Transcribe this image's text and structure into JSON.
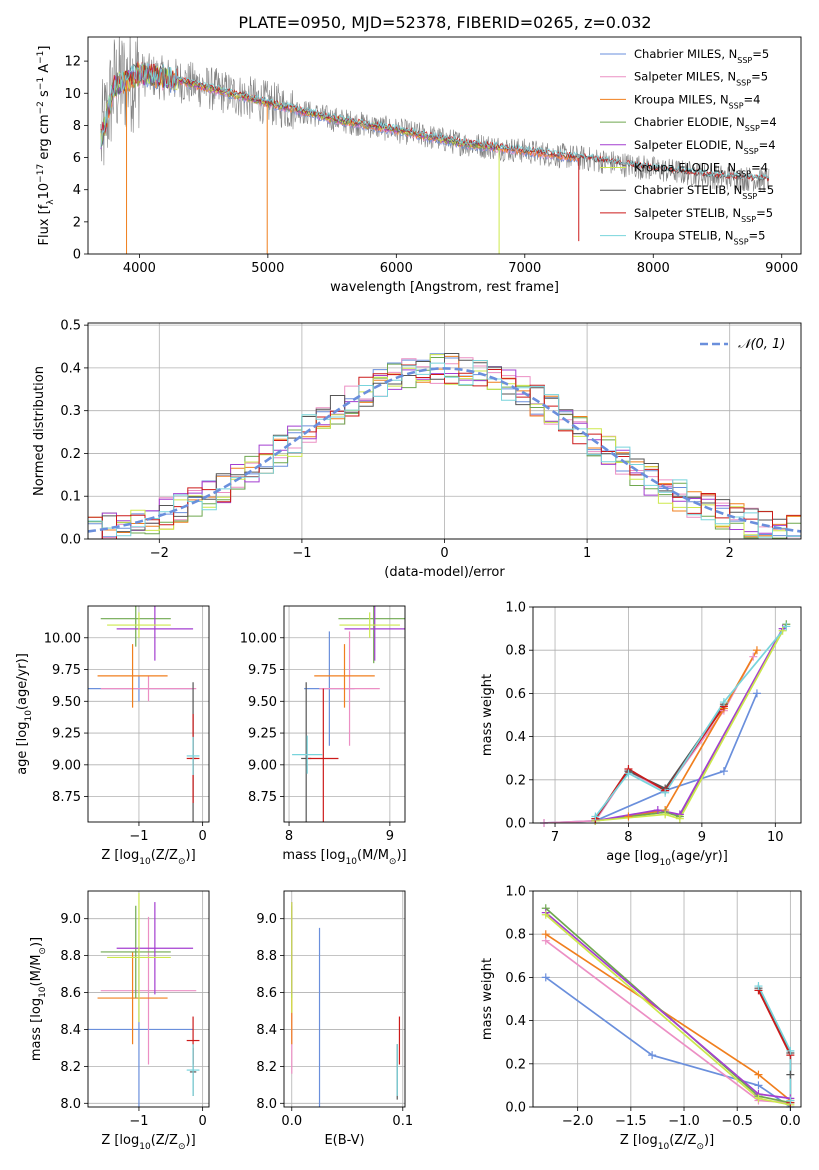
{
  "figure": {
    "title": "PLATE=0950, MJD=52378, FIBERID=0265, z=0.032"
  },
  "colors": {
    "Chabrier MILES": "#6a8fdc",
    "Salpeter MILES": "#ec8fc4",
    "Kroupa MILES": "#f07f1e",
    "Chabrier ELODIE": "#6fa84f",
    "Salpeter ELODIE": "#a43fd0",
    "Kroupa ELODIE": "#cde84c",
    "Chabrier STELIB": "#555555",
    "Salpeter STELIB": "#cc1a1a",
    "Kroupa STELIB": "#78d4dc"
  },
  "chart_data": [
    {
      "type": "line",
      "title": "PLATE=0950, MJD=52378, FIBERID=0265, z=0.032",
      "xlabel": "wavelength [Angstrom, rest frame]",
      "ylabel_parts": [
        "Flux [f",
        "λ",
        "10",
        "−17",
        " erg cm",
        "−2",
        " s",
        "−1",
        " A",
        "−1",
        "]"
      ],
      "xlim": [
        3600,
        9150
      ],
      "ylim": [
        0,
        13.5
      ],
      "xticks": [
        4000,
        5000,
        6000,
        7000,
        8000,
        9000
      ],
      "yticks": [
        0,
        2,
        4,
        6,
        8,
        10,
        12
      ],
      "grid": false,
      "legend_position": "upper-right",
      "legend": [
        {
          "model": "Chabrier MILES",
          "label": "Chabrier MILES, N",
          "sub": "SSP",
          "n": "=5"
        },
        {
          "model": "Salpeter MILES",
          "label": "Salpeter MILES, N",
          "sub": "SSP",
          "n": "=5"
        },
        {
          "model": "Kroupa MILES",
          "label": "Kroupa MILES, N",
          "sub": "SSP",
          "n": "=4"
        },
        {
          "model": "Chabrier ELODIE",
          "label": "Chabrier ELODIE, N",
          "sub": "SSP",
          "n": "=4"
        },
        {
          "model": "Salpeter ELODIE",
          "label": "Salpeter ELODIE, N",
          "sub": "SSP",
          "n": "=4"
        },
        {
          "model": "Kroupa ELODIE",
          "label": "Kroupa ELODIE, N",
          "sub": "SSP",
          "n": "=4"
        },
        {
          "model": "Chabrier STELIB",
          "label": "Chabrier STELIB, N",
          "sub": "SSP",
          "n": "=5"
        },
        {
          "model": "Salpeter STELIB",
          "label": "Salpeter STELIB, N",
          "sub": "SSP",
          "n": "=5"
        },
        {
          "model": "Kroupa STELIB",
          "label": "Kroupa STELIB, N",
          "sub": "SSP",
          "n": "=5"
        }
      ],
      "continuum": [
        [
          3700,
          7.0
        ],
        [
          3800,
          10.4
        ],
        [
          4000,
          11.2
        ],
        [
          4300,
          10.8
        ],
        [
          4600,
          10.2
        ],
        [
          5000,
          9.4
        ],
        [
          5500,
          8.4
        ],
        [
          6000,
          7.7
        ],
        [
          6500,
          6.9
        ],
        [
          7000,
          6.4
        ],
        [
          7500,
          5.9
        ],
        [
          8000,
          5.3
        ],
        [
          8500,
          4.8
        ],
        [
          8900,
          4.6
        ]
      ],
      "data_range": [
        3700,
        8900
      ],
      "model_ranges": {
        "MILES": [
          3700,
          7420
        ],
        "ELODIE": [
          3700,
          6800
        ],
        "STELIB": [
          3700,
          8900
        ]
      },
      "model_dips": [
        {
          "model": "Kroupa MILES",
          "x": 3900,
          "y": 0
        },
        {
          "model": "Kroupa MILES",
          "x": 4995,
          "y": 0
        },
        {
          "model": "Kroupa ELODIE",
          "x": 6800,
          "y": 0
        },
        {
          "model": "Salpeter STELIB",
          "x": 7420,
          "y": 0.8
        }
      ]
    },
    {
      "type": "line",
      "xlabel": "(data-model)/error",
      "ylabel": "Normed distribution",
      "xlim": [
        -2.5,
        2.5
      ],
      "ylim": [
        0,
        0.505
      ],
      "xticks": [
        -2,
        -1,
        0,
        1,
        2
      ],
      "yticks": [
        0.0,
        0.1,
        0.2,
        0.3,
        0.4,
        0.5
      ],
      "grid": true,
      "legend_position": "upper-right",
      "legend": [
        {
          "label": "𝒩(0, 1)",
          "style": "dashed",
          "color": "#6a8fdc"
        }
      ],
      "bin_width": 0.1,
      "series_note": "step histograms of residuals, one per model",
      "gaussian": {
        "mean": 0,
        "sigma": 1
      }
    },
    {
      "type": "scatter",
      "xlabel_parts": [
        "Z [log",
        "10",
        "(Z/Z",
        "⊙",
        ")]"
      ],
      "ylabel_parts": [
        "age  [log",
        "10",
        "(age/yr)]"
      ],
      "xlim": [
        -1.8,
        0.1
      ],
      "ylim": [
        8.55,
        10.25
      ],
      "xticks": [
        -1,
        0
      ],
      "yticks": [
        8.75,
        9.0,
        9.25,
        9.5,
        9.75,
        10.0
      ],
      "grid": true,
      "points": [
        {
          "model": "Chabrier MILES",
          "x": -1.0,
          "xerr": 0.85,
          "y": 9.6,
          "yerr": 0.1
        },
        {
          "model": "Salpeter MILES",
          "x": -0.85,
          "xerr": 0.75,
          "y": 9.6,
          "yerr": 0.1
        },
        {
          "model": "Kroupa MILES",
          "x": -1.1,
          "xerr": 0.55,
          "y": 9.7,
          "yerr": 0.25
        },
        {
          "model": "Chabrier ELODIE",
          "x": -1.05,
          "xerr": 0.55,
          "y": 10.15,
          "yerr": 0.22
        },
        {
          "model": "Salpeter ELODIE",
          "x": -0.75,
          "xerr": 0.6,
          "y": 10.07,
          "yerr": 0.25
        },
        {
          "model": "Kroupa ELODIE",
          "x": -1.0,
          "xerr": 0.5,
          "y": 10.1,
          "yerr": 0.1
        },
        {
          "model": "Chabrier STELIB",
          "x": -0.15,
          "xerr": 0.05,
          "y": 9.05,
          "yerr": 0.6
        },
        {
          "model": "Salpeter STELIB",
          "x": -0.15,
          "xerr": 0.1,
          "y": 9.05,
          "yerr": 0.35
        },
        {
          "model": "Kroupa STELIB",
          "x": -0.15,
          "xerr": 0.1,
          "y": 9.07,
          "yerr": 0.15
        }
      ]
    },
    {
      "type": "scatter",
      "xlabel_parts": [
        "mass [log",
        "10",
        "(M/M",
        "⊙",
        ")]"
      ],
      "xlim": [
        7.95,
        9.15
      ],
      "ylim": [
        8.55,
        10.25
      ],
      "xticks": [
        8,
        9
      ],
      "yticks": [
        8.75,
        9.0,
        9.25,
        9.5,
        9.75,
        10.0
      ],
      "grid": true,
      "points": [
        {
          "model": "Chabrier MILES",
          "x": 8.4,
          "xerr": 0.25,
          "y": 9.6,
          "yerr": 0.45
        },
        {
          "model": "Salpeter MILES",
          "x": 8.6,
          "xerr": 0.3,
          "y": 9.6,
          "yerr": 0.45
        },
        {
          "model": "Kroupa MILES",
          "x": 8.55,
          "xerr": 0.3,
          "y": 9.7,
          "yerr": 0.25
        },
        {
          "model": "Chabrier ELODIE",
          "x": 8.84,
          "xerr": 0.35,
          "y": 10.15,
          "yerr": 0.35
        },
        {
          "model": "Salpeter ELODIE",
          "x": 8.85,
          "xerr": 0.3,
          "y": 10.07,
          "yerr": 0.25
        },
        {
          "model": "Kroupa ELODIE",
          "x": 8.8,
          "xerr": 0.3,
          "y": 10.1,
          "yerr": 0.1
        },
        {
          "model": "Chabrier STELIB",
          "x": 8.17,
          "xerr": 0.05,
          "y": 9.05,
          "yerr": 0.6
        },
        {
          "model": "Salpeter STELIB",
          "x": 8.34,
          "xerr": 0.15,
          "y": 9.05,
          "yerr": 0.55
        },
        {
          "model": "Kroupa STELIB",
          "x": 8.18,
          "xerr": 0.15,
          "y": 9.08,
          "yerr": 0.15
        }
      ]
    },
    {
      "type": "line",
      "xlabel_parts": [
        "age  [log",
        "10",
        "(age/yr)]"
      ],
      "ylabel": "mass weight",
      "xlim": [
        6.7,
        10.35
      ],
      "ylim": [
        0,
        1.0
      ],
      "xticks": [
        7,
        8,
        9,
        10
      ],
      "yticks": [
        0.0,
        0.2,
        0.4,
        0.6,
        0.8,
        1.0
      ],
      "grid": true,
      "series": [
        {
          "model": "Chabrier MILES",
          "x": [
            6.85,
            7.55,
            8.5,
            9.3,
            9.75
          ],
          "y": [
            0.0,
            0.01,
            0.15,
            0.24,
            0.6
          ]
        },
        {
          "model": "Salpeter MILES",
          "x": [
            6.85,
            7.55,
            8.0,
            8.5,
            9.3,
            9.7
          ],
          "y": [
            0.0,
            0.01,
            0.24,
            0.15,
            0.52,
            0.77
          ]
        },
        {
          "model": "Kroupa MILES",
          "x": [
            7.55,
            8.0,
            8.5,
            9.3,
            9.75
          ],
          "y": [
            0.01,
            0.03,
            0.06,
            0.53,
            0.8
          ]
        },
        {
          "model": "Chabrier ELODIE",
          "x": [
            7.55,
            8.5,
            8.7,
            10.15
          ],
          "y": [
            0.01,
            0.05,
            0.03,
            0.92
          ]
        },
        {
          "model": "Salpeter ELODIE",
          "x": [
            7.55,
            8.4,
            8.7,
            10.1
          ],
          "y": [
            0.01,
            0.06,
            0.04,
            0.9
          ]
        },
        {
          "model": "Kroupa ELODIE",
          "x": [
            7.55,
            8.5,
            8.7,
            10.1
          ],
          "y": [
            0.01,
            0.04,
            0.02,
            0.89
          ]
        },
        {
          "model": "Chabrier STELIB",
          "x": [
            7.55,
            8.0,
            8.5,
            9.3
          ],
          "y": [
            0.02,
            0.24,
            0.16,
            0.55
          ]
        },
        {
          "model": "Salpeter STELIB",
          "x": [
            7.55,
            8.0,
            8.5,
            9.3
          ],
          "y": [
            0.02,
            0.25,
            0.15,
            0.54
          ]
        },
        {
          "model": "Kroupa STELIB",
          "x": [
            7.55,
            8.0,
            8.5,
            9.3,
            10.15
          ],
          "y": [
            0.03,
            0.23,
            0.14,
            0.56,
            0.91
          ]
        }
      ]
    },
    {
      "type": "scatter",
      "xlabel_parts": [
        "Z [log",
        "10",
        "(Z/Z",
        "⊙",
        ")]"
      ],
      "ylabel_parts": [
        "mass [log",
        "10",
        "(M/M",
        "⊙",
        ")]"
      ],
      "xlim": [
        -1.8,
        0.1
      ],
      "ylim": [
        7.98,
        9.15
      ],
      "xticks": [
        -1,
        0
      ],
      "yticks": [
        8.0,
        8.2,
        8.4,
        8.6,
        8.8,
        9.0
      ],
      "grid": true,
      "points": [
        {
          "model": "Chabrier MILES",
          "x": -1.0,
          "xerr": 0.85,
          "y": 8.4,
          "yerr": 0.45
        },
        {
          "model": "Salpeter MILES",
          "x": -0.85,
          "xerr": 0.75,
          "y": 8.61,
          "yerr": 0.4
        },
        {
          "model": "Kroupa MILES",
          "x": -1.1,
          "xerr": 0.55,
          "y": 8.57,
          "yerr": 0.25
        },
        {
          "model": "Chabrier ELODIE",
          "x": -1.05,
          "xerr": 0.55,
          "y": 8.82,
          "yerr": 0.25
        },
        {
          "model": "Salpeter ELODIE",
          "x": -0.75,
          "xerr": 0.6,
          "y": 8.84,
          "yerr": 0.25
        },
        {
          "model": "Kroupa ELODIE",
          "x": -1.0,
          "xerr": 0.5,
          "y": 8.79,
          "yerr": 0.35
        },
        {
          "model": "Chabrier STELIB",
          "x": -0.15,
          "xerr": 0.05,
          "y": 8.17,
          "yerr": 0.13
        },
        {
          "model": "Salpeter STELIB",
          "x": -0.15,
          "xerr": 0.1,
          "y": 8.34,
          "yerr": 0.13
        },
        {
          "model": "Kroupa STELIB",
          "x": -0.15,
          "xerr": 0.1,
          "y": 8.18,
          "yerr": 0.14
        }
      ]
    },
    {
      "type": "scatter",
      "xlabel": "E(B-V)",
      "xlim": [
        -0.007,
        0.102
      ],
      "ylim": [
        7.98,
        9.15
      ],
      "xticks": [
        0.0,
        0.1
      ],
      "yticks": [
        8.0,
        8.2,
        8.4,
        8.6,
        8.8,
        9.0
      ],
      "grid": true,
      "points": [
        {
          "model": "Chabrier MILES",
          "x": 0.025,
          "y": 8.4,
          "yerr": 0.55
        },
        {
          "model": "Salpeter MILES",
          "x": 0.0,
          "y": 8.61,
          "yerr": 0.45
        },
        {
          "model": "Kroupa MILES",
          "x": 0.0,
          "y": 8.57,
          "yerr": 0.25
        },
        {
          "model": "Chabrier ELODIE",
          "x": 0.0,
          "y": 8.82,
          "yerr": 0.25
        },
        {
          "model": "Salpeter ELODIE",
          "x": 0.0,
          "y": 8.84,
          "yerr": 0.25
        },
        {
          "model": "Kroupa ELODIE",
          "x": 0.0,
          "y": 8.79,
          "yerr": 0.3
        },
        {
          "model": "Chabrier STELIB",
          "x": 0.095,
          "y": 8.17,
          "yerr": 0.15
        },
        {
          "model": "Salpeter STELIB",
          "x": 0.097,
          "y": 8.34,
          "yerr": 0.13
        },
        {
          "model": "Kroupa STELIB",
          "x": 0.095,
          "y": 8.18,
          "yerr": 0.14
        }
      ]
    },
    {
      "type": "line",
      "xlabel_parts": [
        "Z [log",
        "10",
        "(Z/Z",
        "⊙",
        ")]"
      ],
      "ylabel": "mass weight",
      "xlim": [
        -2.42,
        0.1
      ],
      "ylim": [
        0,
        1.0
      ],
      "xticks": [
        -2.0,
        -1.5,
        -1.0,
        -0.5,
        0.0
      ],
      "yticks": [
        0.0,
        0.2,
        0.4,
        0.6,
        0.8,
        1.0
      ],
      "grid": true,
      "series": [
        {
          "model": "Chabrier MILES",
          "x": [
            -2.3,
            -1.3,
            -0.3,
            0.0
          ],
          "y": [
            0.6,
            0.24,
            0.1,
            0.0
          ]
        },
        {
          "model": "Salpeter MILES",
          "x": [
            -2.3,
            -0.3,
            0.0
          ],
          "y": [
            0.77,
            0.03,
            0.02
          ]
        },
        {
          "model": "Kroupa MILES",
          "x": [
            -2.3,
            -0.3,
            0.0
          ],
          "y": [
            0.8,
            0.15,
            0.03
          ]
        },
        {
          "model": "Chabrier ELODIE",
          "x": [
            -2.3,
            -0.3,
            0.0
          ],
          "y": [
            0.92,
            0.05,
            0.02
          ]
        },
        {
          "model": "Salpeter ELODIE",
          "x": [
            -2.3,
            -0.3,
            0.0
          ],
          "y": [
            0.9,
            0.06,
            0.04
          ]
        },
        {
          "model": "Kroupa ELODIE",
          "x": [
            -2.3,
            -0.3,
            0.0
          ],
          "y": [
            0.89,
            0.04,
            0.01
          ]
        },
        {
          "model": "Chabrier STELIB",
          "x": [
            -0.3,
            0.0,
            0.0
          ],
          "y": [
            0.55,
            0.25,
            0.15
          ]
        },
        {
          "model": "Salpeter STELIB",
          "x": [
            -0.3,
            0.0,
            0.0
          ],
          "y": [
            0.54,
            0.24,
            0.02
          ]
        },
        {
          "model": "Kroupa STELIB",
          "x": [
            -0.3,
            0.0,
            0.0
          ],
          "y": [
            0.56,
            0.26,
            0.03
          ]
        }
      ]
    }
  ]
}
